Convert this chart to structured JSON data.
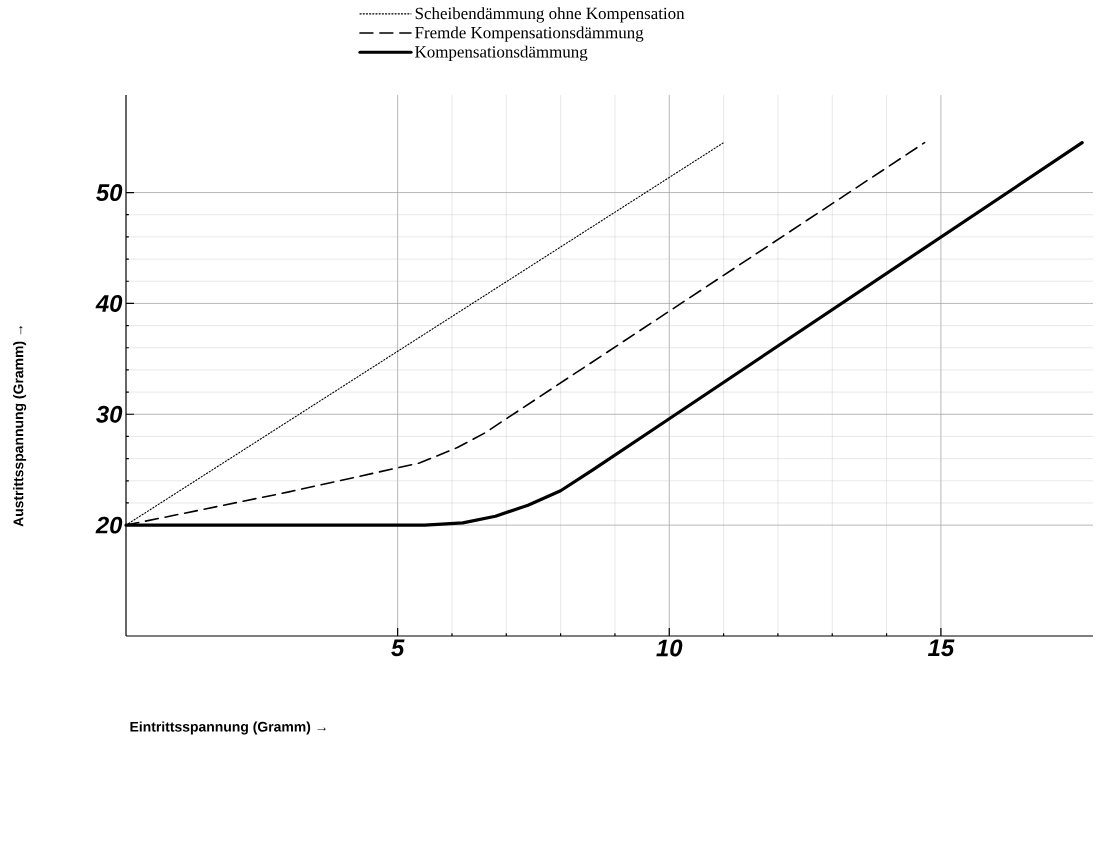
{
  "chart_data": {
    "type": "line",
    "xlabel": "Eintrittsspannung (Gramm) →",
    "ylabel": "Austrittsspannung (Gramm) →",
    "xlim": [
      0,
      17.8
    ],
    "ylim": [
      10,
      58.8
    ],
    "xticks": [
      5,
      10,
      15
    ],
    "yticks": [
      20,
      30,
      40,
      50
    ],
    "grid": true,
    "legend": "top",
    "marker": "none",
    "series": [
      {
        "name": "Scheibendämmung ohne Kompensation",
        "color": "#000000",
        "line_style": "dotted",
        "x": [
          0,
          11.0
        ],
        "values": [
          20,
          54.5
        ]
      },
      {
        "name": "Fremde Kompensationsdämmung",
        "color": "#000000",
        "line_style": "dashed",
        "x": [
          0,
          3,
          5.4,
          6.1,
          6.6,
          14.7
        ],
        "values": [
          20,
          23,
          25.6,
          27,
          28.3,
          54.5
        ]
      },
      {
        "name": "Kompensationsdämmung",
        "color": "#000000",
        "line_style": "solid",
        "x": [
          0,
          5.5,
          6.2,
          6.8,
          7.4,
          8,
          8.6,
          10,
          17.6
        ],
        "values": [
          20,
          20,
          20.2,
          20.8,
          21.8,
          23.1,
          25,
          29.6,
          54.5
        ]
      }
    ]
  }
}
